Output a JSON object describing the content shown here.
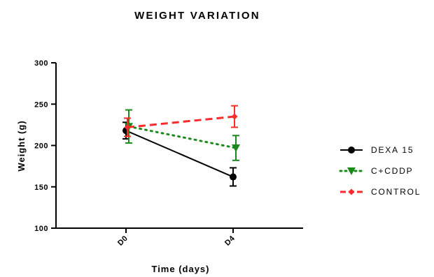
{
  "chart_data": {
    "type": "line",
    "title": "WEIGHT VARIATION",
    "xlabel": "Time (days)",
    "ylabel": "Weight (g)",
    "categories": [
      "D0",
      "D4"
    ],
    "ylim": [
      100,
      300
    ],
    "yticks": [
      100,
      150,
      200,
      250,
      300
    ],
    "grid": false,
    "legend_position": "right",
    "series": [
      {
        "name": "DEXA 15",
        "values": [
          218,
          162
        ],
        "error": [
          10,
          11
        ],
        "color": "#000000",
        "dash": "solid",
        "marker": "circle"
      },
      {
        "name": "C+CDDP",
        "values": [
          223,
          197
        ],
        "error": [
          20,
          15
        ],
        "color": "#1a8a1a",
        "dash": "dotted",
        "marker": "triangle-down"
      },
      {
        "name": "CONTROL",
        "values": [
          222,
          235
        ],
        "error": [
          11,
          13
        ],
        "color": "#ff2a2a",
        "dash": "dashed",
        "marker": "diamond"
      }
    ]
  }
}
